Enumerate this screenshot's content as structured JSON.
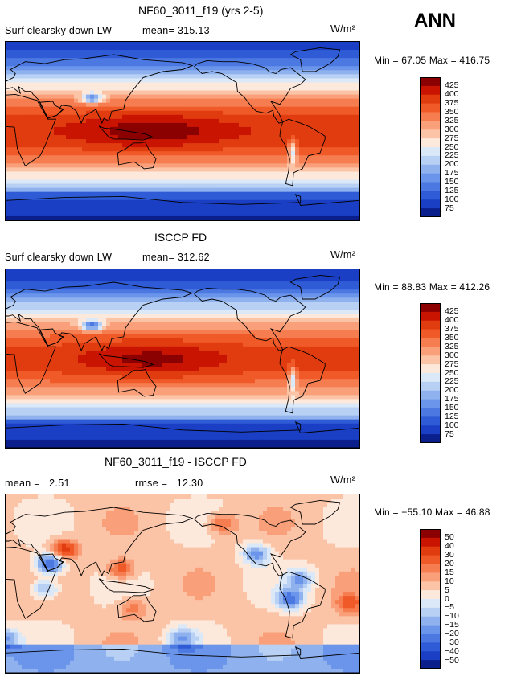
{
  "season": "ANN",
  "panels": [
    {
      "title": "NF60_3011_f19 (yrs 2-5)",
      "field_label": "Surf clearsky down LW",
      "stat1_label": "mean=",
      "stat1_value": "315.13",
      "units": "W/m²",
      "min_label": "Min =",
      "min_value": "67.05",
      "max_label": "Max =",
      "max_value": "416.75"
    },
    {
      "title": "ISCCP FD",
      "field_label": "Surf clearsky down LW",
      "stat1_label": "mean=",
      "stat1_value": "312.62",
      "units": "W/m²",
      "min_label": "Min =",
      "min_value": "88.83",
      "max_label": "Max =",
      "max_value": "412.26"
    },
    {
      "title": "NF60_3011_f19 - ISCCP FD",
      "field_label": "",
      "stat1_label": "mean =",
      "stat1_value": "2.51",
      "stat2_label": "rmse =",
      "stat2_value": "12.30",
      "units": "W/m²",
      "min_label": "Min =",
      "min_value": "−55.10",
      "max_label": "Max =",
      "max_value": "46.88"
    }
  ],
  "chart_data": [
    {
      "type": "heatmap",
      "title": "NF60_3011_f19 (yrs 2-5)",
      "variable": "Surf clearsky down LW",
      "units": "W/m²",
      "mean": 315.13,
      "min": 67.05,
      "max": 416.75,
      "colorbar_levels": [
        "425",
        "400",
        "375",
        "350",
        "325",
        "300",
        "275",
        "250",
        "225",
        "200",
        "175",
        "150",
        "125",
        "100",
        "75"
      ],
      "colorbar_colors": [
        "#8b0000",
        "#c81400",
        "#e03c10",
        "#f05a28",
        "#f57d50",
        "#f9a07a",
        "#fcc4a6",
        "#fde8dc",
        "#dbe8f8",
        "#b8d0f4",
        "#8fb2ef",
        "#6b95ea",
        "#4c78e2",
        "#2f5cd6",
        "#1a3fc4",
        "#0a1e8c"
      ]
    },
    {
      "type": "heatmap",
      "title": "ISCCP FD",
      "variable": "Surf clearsky down LW",
      "units": "W/m²",
      "mean": 312.62,
      "min": 88.83,
      "max": 412.26,
      "colorbar_levels": [
        "425",
        "400",
        "375",
        "350",
        "325",
        "300",
        "275",
        "250",
        "225",
        "200",
        "175",
        "150",
        "125",
        "100",
        "75"
      ],
      "colorbar_colors": [
        "#8b0000",
        "#c81400",
        "#e03c10",
        "#f05a28",
        "#f57d50",
        "#f9a07a",
        "#fcc4a6",
        "#fde8dc",
        "#dbe8f8",
        "#b8d0f4",
        "#8fb2ef",
        "#6b95ea",
        "#4c78e2",
        "#2f5cd6",
        "#1a3fc4",
        "#0a1e8c"
      ]
    },
    {
      "type": "heatmap",
      "title": "NF60_3011_f19 - ISCCP FD",
      "units": "W/m²",
      "mean": 2.51,
      "rmse": 12.3,
      "min": -55.1,
      "max": 46.88,
      "colorbar_levels": [
        "50",
        "40",
        "30",
        "20",
        "15",
        "10",
        "5",
        "0",
        "−5",
        "−10",
        "−15",
        "−20",
        "−30",
        "−40",
        "−50"
      ],
      "colorbar_colors": [
        "#8b0000",
        "#c81400",
        "#e03c10",
        "#f05a28",
        "#f57d50",
        "#f9a07a",
        "#fcc4a6",
        "#fde8dc",
        "#dbe8f8",
        "#b8d0f4",
        "#8fb2ef",
        "#6b95ea",
        "#4c78e2",
        "#2f5cd6",
        "#1a3fc4",
        "#0a1e8c"
      ]
    }
  ]
}
